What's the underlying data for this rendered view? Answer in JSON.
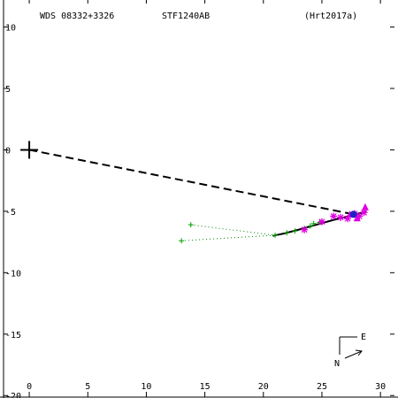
{
  "header": {
    "wds": "WDS 08332+3326",
    "discoverer": "STF1240AB",
    "reference": "(Hrt2017a)"
  },
  "compass": {
    "east_label": "E",
    "north_label": "N"
  },
  "colors": {
    "axis": "#000000",
    "orbit": "#000000",
    "residual": "#008000",
    "green_points": "#00a000",
    "magenta_points": "#e000e0",
    "blue_points": "#2020c0"
  },
  "chart_data": {
    "type": "scatter",
    "title": "",
    "xlabel": "",
    "ylabel": "",
    "xlim": [
      -2.5,
      31.5
    ],
    "ylim": [
      -20.2,
      12.2
    ],
    "x_ticks": [
      0,
      5,
      10,
      15,
      20,
      25,
      30
    ],
    "y_ticks": [
      10,
      5,
      0,
      -5,
      -10,
      -15,
      -20
    ],
    "x_tick_labels": [
      "0",
      "5",
      "10",
      "15",
      "20",
      "25",
      "30"
    ],
    "y_tick_labels": [
      "10",
      "5",
      "0",
      "-5",
      "-10",
      "-15",
      "-20"
    ],
    "primary": {
      "x": 0,
      "y": 0
    },
    "dashed_line": [
      [
        0,
        0
      ],
      [
        28.0,
        -5.3
      ]
    ],
    "orbit_arc": [
      [
        20.8,
        -7.0
      ],
      [
        21.8,
        -6.8
      ],
      [
        23.0,
        -6.5
      ],
      [
        24.5,
        -6.1
      ],
      [
        26.0,
        -5.7
      ],
      [
        27.5,
        -5.35
      ],
      [
        28.8,
        -5.0
      ]
    ],
    "residual_lines": [
      [
        [
          13.0,
          -7.4
        ],
        [
          21.0,
          -6.95
        ]
      ],
      [
        [
          13.8,
          -6.1
        ],
        [
          21.0,
          -6.95
        ]
      ]
    ],
    "series": [
      {
        "marker": "plus",
        "color": "#00a000",
        "points": [
          [
            13.0,
            -7.4
          ],
          [
            13.8,
            -6.1
          ],
          [
            21.0,
            -6.95
          ],
          [
            22.0,
            -6.75
          ],
          [
            22.7,
            -6.6
          ],
          [
            23.5,
            -6.4
          ],
          [
            24.0,
            -6.2
          ],
          [
            24.3,
            -6.0
          ],
          [
            24.8,
            -5.9
          ]
        ]
      },
      {
        "marker": "star",
        "color": "#e000e0",
        "points": [
          [
            23.5,
            -6.5
          ],
          [
            25.0,
            -5.85
          ],
          [
            26.0,
            -5.4
          ],
          [
            26.6,
            -5.5
          ],
          [
            27.2,
            -5.6
          ],
          [
            27.8,
            -5.2
          ],
          [
            28.2,
            -5.4
          ],
          [
            28.6,
            -5.1
          ]
        ]
      },
      {
        "marker": "triangle",
        "color": "#e000e0",
        "points": [
          [
            27.4,
            -5.3
          ],
          [
            28.0,
            -5.6
          ],
          [
            28.7,
            -4.7
          ]
        ]
      },
      {
        "marker": "circle",
        "color": "#2020c0",
        "points": [
          [
            27.7,
            -5.25
          ]
        ]
      }
    ]
  }
}
